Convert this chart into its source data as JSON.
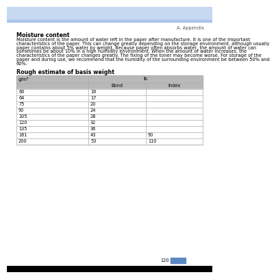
{
  "page_number": "120",
  "header_text": "A. Appendix",
  "header_bg": "#c5d9f1",
  "header_stripe_bg": "#a8c4e8",
  "section1_title": "Moisture content",
  "section1_body": "Moisture content is the amount of water left in the paper after manufacture. It is one of the important\ncharacteristics of the paper. This can change greatly depending on the storage environment, although usually\npaper contains about 5% water by weight. Because paper often absorbs water, the amount of water can\nsometimes be about 10% in a high humidity environment. When the amount of water increases, the\ncharacteristics of the paper changes greatly. The fixing of the toner may become worse. For storage of the\npaper and during use, we recommend that the humidity of the surrounding environment be between 50% and\n60%.",
  "section2_title": "Rough estimate of basis weight",
  "table_col0_header": "g/m²",
  "table_col1_header": "lb",
  "table_sub_col1": "Bond",
  "table_sub_col2": "Index",
  "table_header_bg": "#b8b8b8",
  "table_border_color": "#aaaaaa",
  "table_data": [
    [
      "60",
      "16",
      ""
    ],
    [
      "64",
      "17",
      ""
    ],
    [
      "75",
      "20",
      ""
    ],
    [
      "90",
      "24",
      ""
    ],
    [
      "105",
      "28",
      ""
    ],
    [
      "120",
      "32",
      ""
    ],
    [
      "135",
      "36",
      ""
    ],
    [
      "161",
      "43",
      "90"
    ],
    [
      "200",
      "53",
      "110"
    ]
  ],
  "footer_blue_bg": "#5b87c5",
  "footer_black_bg": "#000000",
  "body_font_size": 4.8,
  "title_font_size": 5.8,
  "header_font_size": 4.8,
  "table_font_size": 4.8
}
